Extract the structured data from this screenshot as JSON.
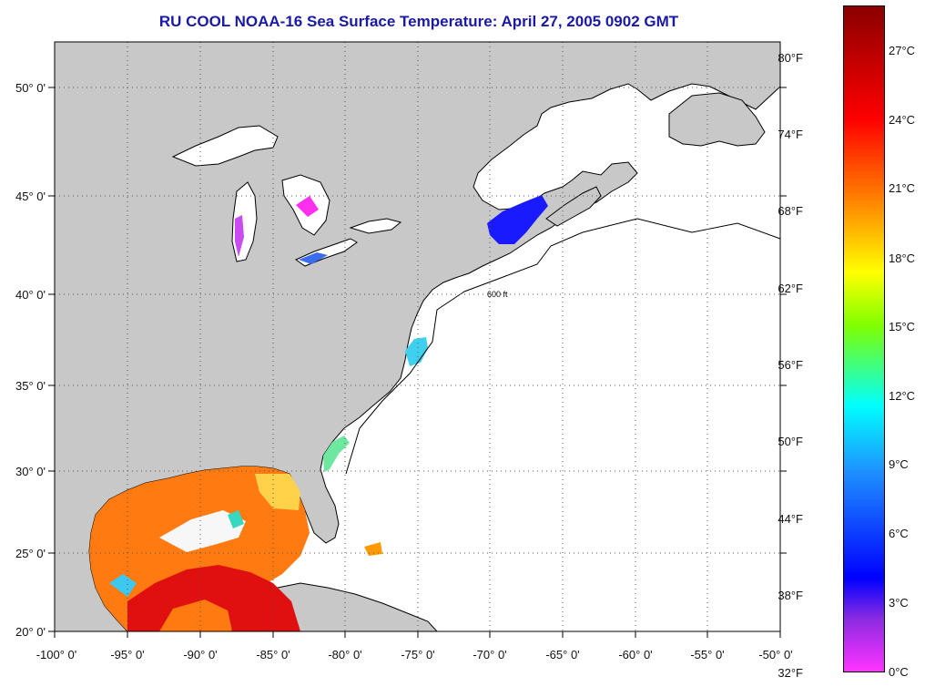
{
  "title": "RU COOL  NOAA-16  Sea Surface Temperature:  April 27, 2005 0902 GMT",
  "latitude_labels": [
    "50° 0'",
    "45° 0'",
    "40° 0'",
    "35° 0'",
    "30° 0'",
    "25° 0'",
    "20° 0'"
  ],
  "longitude_labels": [
    "-100° 0'",
    "-95° 0'",
    "-90° 0'",
    "-85° 0'",
    "-80° 0'",
    "-75° 0'",
    "-70° 0'",
    "-65° 0'",
    "-60° 0'",
    "-55° 0'",
    "-50° 0'"
  ],
  "colorbar": {
    "fahrenheit_labels": [
      "80°F",
      "74°F",
      "68°F",
      "62°F",
      "56°F",
      "50°F",
      "44°F",
      "38°F",
      "32°F"
    ],
    "celsius_labels": [
      "27°C",
      "24°C",
      "21°C",
      "18°C",
      "15°C",
      "12°C",
      "9°C",
      "6°C",
      "3°C",
      "0°C"
    ],
    "colors": [
      "#8b0000",
      "#ff0000",
      "#ff8c00",
      "#ffff00",
      "#7fff00",
      "#00ffff",
      "#1e90ff",
      "#0000ff",
      "#8a2be2",
      "#ff33ff"
    ]
  },
  "bathymetry_label": "600 ft",
  "colors": {
    "land": "#c8c8c8",
    "water": "#ffffff",
    "grid": "#555555",
    "coast": "#000000"
  }
}
